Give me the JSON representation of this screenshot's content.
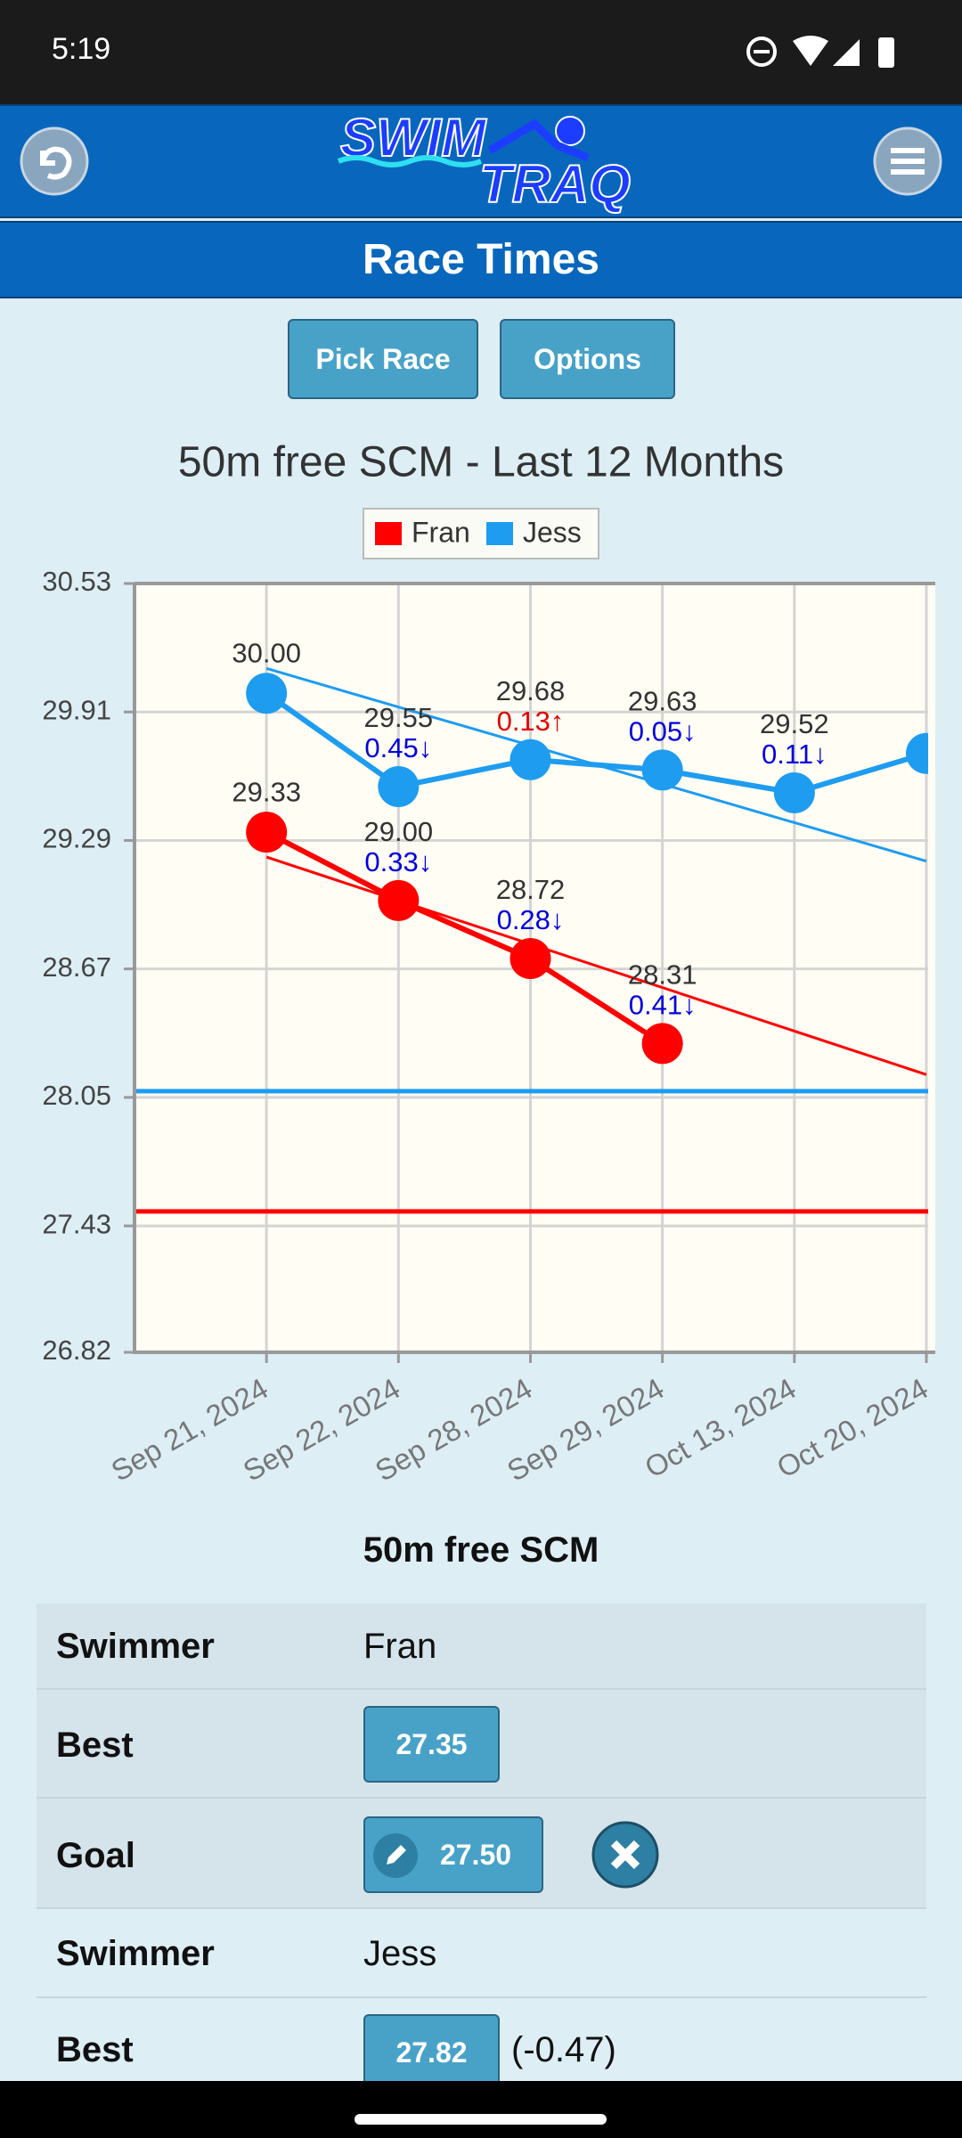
{
  "status_bar": {
    "time": "5:19"
  },
  "header": {
    "logo": [
      "SWIM",
      "TRAQ"
    ],
    "title": "Race Times"
  },
  "buttons": [
    "Pick Race",
    "Options"
  ],
  "chart_data": {
    "type": "line",
    "title": "50m free SCM - Last 12 Months",
    "categories": [
      "Sep 21, 2024",
      "Sep 22, 2024",
      "Sep 28, 2024",
      "Sep 29, 2024",
      "Oct 13, 2024",
      "Oct 20, 2024"
    ],
    "series": [
      {
        "name": "Fran",
        "color": "#ff0000",
        "values": [
          29.33,
          29.0,
          28.72,
          28.31,
          null,
          null
        ],
        "value_labels": [
          "29.33",
          "29.00",
          "28.72",
          "28.31",
          null,
          null
        ],
        "changes": [
          null,
          "0.33↓",
          "0.28↓",
          "0.41↓",
          null,
          null
        ],
        "trend": [
          29.21,
          28.16
        ],
        "goal": 27.5
      },
      {
        "name": "Jess",
        "color": "#1e9cf0",
        "values": [
          30.0,
          29.55,
          29.68,
          29.63,
          29.52,
          29.71
        ],
        "value_labels": [
          "30.00",
          "29.55",
          "29.68",
          "29.63",
          "29.52",
          null
        ],
        "changes": [
          null,
          "0.45↓",
          "0.13↑",
          "0.05↓",
          "0.11↓",
          null
        ],
        "trend": [
          30.12,
          29.19
        ],
        "goal": 28.08
      }
    ],
    "up_color": "#e00000",
    "down_color": "#0000dd",
    "ylim": [
      26.82,
      30.53
    ],
    "yticks": [
      26.82,
      27.43,
      28.05,
      28.67,
      29.29,
      29.91,
      30.53
    ],
    "grid": true,
    "legend": "top"
  },
  "table": {
    "title": "50m free SCM",
    "rows": [
      [
        "Swimmer",
        "Fran"
      ],
      [
        "Best",
        "27.35"
      ],
      [
        "Goal",
        "27.50"
      ],
      [
        "Swimmer",
        "Jess"
      ],
      [
        "Best",
        "27.82",
        "(-0.47)"
      ]
    ]
  }
}
